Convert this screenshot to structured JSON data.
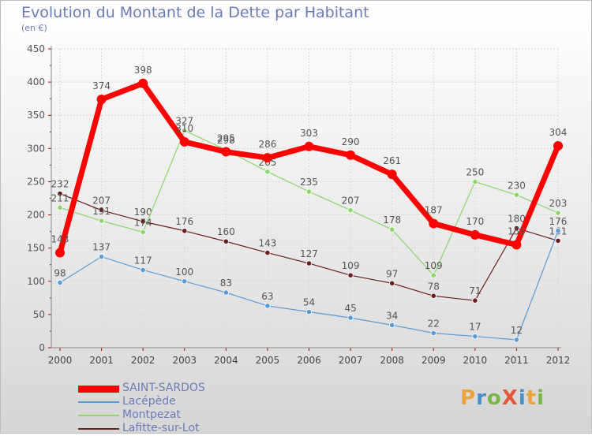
{
  "title": "Evolution du Montant de la Dette par Habitant",
  "subtitle": "(en €)",
  "logo": {
    "text": "ProXiti",
    "colors": [
      "#e8a33a",
      "#4a90c8",
      "#7ab648",
      "#e05a3a",
      "#4a90c8",
      "#e8a33a",
      "#7ab648"
    ]
  },
  "chart_data": {
    "type": "line",
    "x": [
      "2000",
      "2001",
      "2002",
      "2003",
      "2004",
      "2005",
      "2006",
      "2007",
      "2008",
      "2009",
      "2010",
      "2011",
      "2012"
    ],
    "ylim": [
      0,
      450
    ],
    "yticks": [
      0,
      50,
      100,
      150,
      200,
      250,
      300,
      350,
      400,
      450
    ],
    "legend_position": "bottom-left",
    "series": [
      {
        "name": "Lafitte-sur-Lot",
        "color": "#6b1e1e",
        "width": 1.2,
        "marker": 3.2,
        "values": [
          232,
          207,
          190,
          176,
          160,
          143,
          127,
          109,
          97,
          78,
          71,
          180,
          161
        ]
      },
      {
        "name": "Montpezat",
        "color": "#8cd66a",
        "width": 1.2,
        "marker": 3.2,
        "values": [
          211,
          191,
          174,
          327,
          298,
          265,
          235,
          207,
          178,
          109,
          250,
          230,
          203
        ]
      },
      {
        "name": "Lacépède",
        "color": "#5b9bd5",
        "width": 1.2,
        "marker": 3.2,
        "values": [
          98,
          137,
          117,
          100,
          83,
          63,
          54,
          45,
          34,
          22,
          17,
          12,
          176
        ]
      },
      {
        "name": "SAINT-SARDOS",
        "color": "#ff0000",
        "width": 7,
        "marker": 6,
        "values": [
          143,
          374,
          398,
          310,
          295,
          286,
          303,
          290,
          261,
          187,
          170,
          155,
          304
        ],
        "labels": [
          "143",
          "374",
          "398",
          "310",
          "295",
          "286",
          "303",
          "290",
          "261",
          "187",
          "170",
          "155",
          "304"
        ]
      }
    ],
    "legend_order": [
      "SAINT-SARDOS",
      "Lacépède",
      "Montpezat",
      "Lafitte-sur-Lot"
    ]
  }
}
